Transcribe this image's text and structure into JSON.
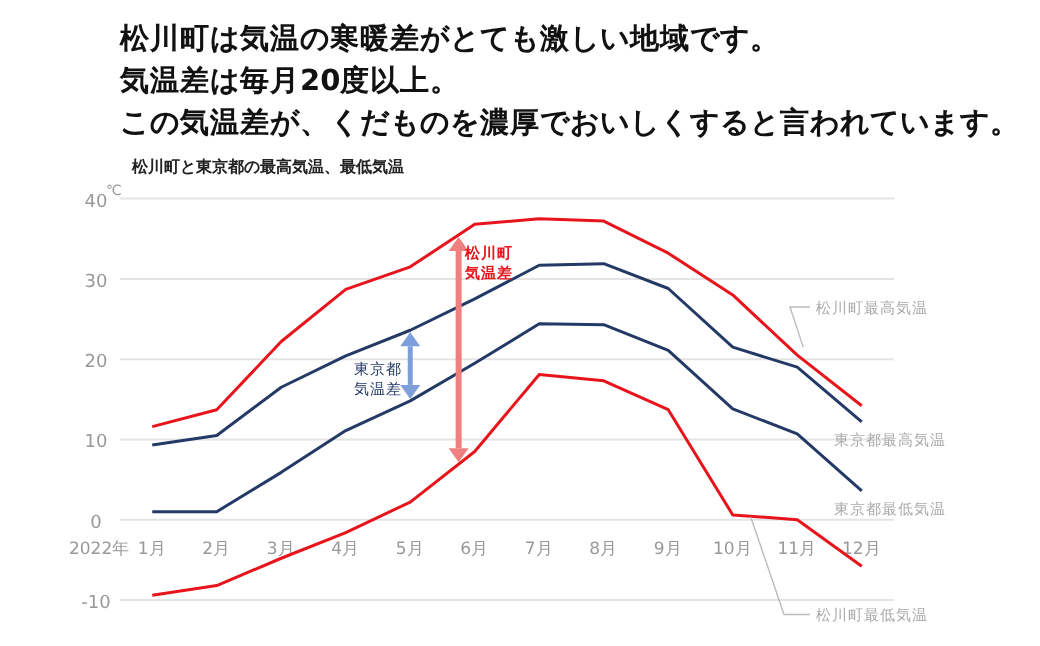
{
  "chart_data": {
    "type": "line",
    "title": "松川町は気温の寒暖差がとても激しい地域です。気温差は毎月20度以上。この気温差が、くだものを濃厚でおいしくすると言われています。",
    "subtitle": "松川町と東京都の最高気温、最低気温",
    "xlabel": "2022年",
    "ylabel": "℃",
    "categories": [
      "1月",
      "2月",
      "3月",
      "4月",
      "5月",
      "6月",
      "7月",
      "8月",
      "9月",
      "10月",
      "11月",
      "12月"
    ],
    "series": [
      {
        "name": "松川町最高気温",
        "color": "#e8141b",
        "values": [
          11.6,
          13.7,
          22.2,
          28.7,
          31.5,
          36.8,
          37.5,
          37.2,
          33.2,
          28.0,
          20.5,
          14.2
        ]
      },
      {
        "name": "東京都最高気温",
        "color": "#243a66",
        "values": [
          9.3,
          10.5,
          16.5,
          20.4,
          23.6,
          27.5,
          31.7,
          31.9,
          28.8,
          21.5,
          19.0,
          12.2
        ]
      },
      {
        "name": "東京都最低気温",
        "color": "#243a66",
        "values": [
          1.0,
          1.0,
          5.9,
          11.1,
          14.8,
          19.5,
          24.4,
          24.3,
          21.1,
          13.8,
          10.7,
          3.6
        ]
      },
      {
        "name": "松川町最低気温",
        "color": "#e8141b",
        "values": [
          -9.4,
          -8.2,
          -4.8,
          -1.6,
          2.2,
          8.5,
          18.1,
          17.3,
          13.7,
          0.6,
          0.0,
          -5.8
        ]
      }
    ],
    "annotations": [
      "松川町気温差",
      "東京都気温差"
    ],
    "ylim": [
      -10,
      40
    ],
    "yticks": [
      -10,
      0,
      10,
      20,
      30,
      40
    ],
    "grid": "y"
  }
}
